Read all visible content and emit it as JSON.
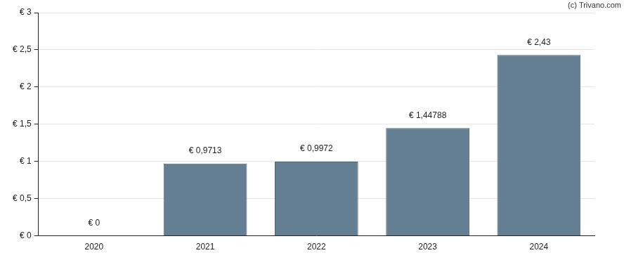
{
  "chart_data": {
    "type": "bar",
    "annotation": "(c) Trivano.com",
    "categories": [
      "2020",
      "2021",
      "2022",
      "2023",
      "2024"
    ],
    "values": [
      0,
      0.9713,
      0.9972,
      1.44788,
      2.43
    ],
    "value_labels": [
      "€ 0",
      "€ 0,9713",
      "€ 0,9972",
      "€ 1,44788",
      "€ 2,43"
    ],
    "color": "#647f91",
    "ylim": [
      0,
      3
    ],
    "yticks": [
      {
        "value": 0,
        "label": "€ 0"
      },
      {
        "value": 0.5,
        "label": "€ 0,5"
      },
      {
        "value": 1,
        "label": "€ 1"
      },
      {
        "value": 1.5,
        "label": "€ 1,5"
      },
      {
        "value": 2,
        "label": "€ 2"
      },
      {
        "value": 2.5,
        "label": "€ 2,5"
      },
      {
        "value": 3,
        "label": "€ 3"
      }
    ],
    "grid": true,
    "data_labels": true
  }
}
